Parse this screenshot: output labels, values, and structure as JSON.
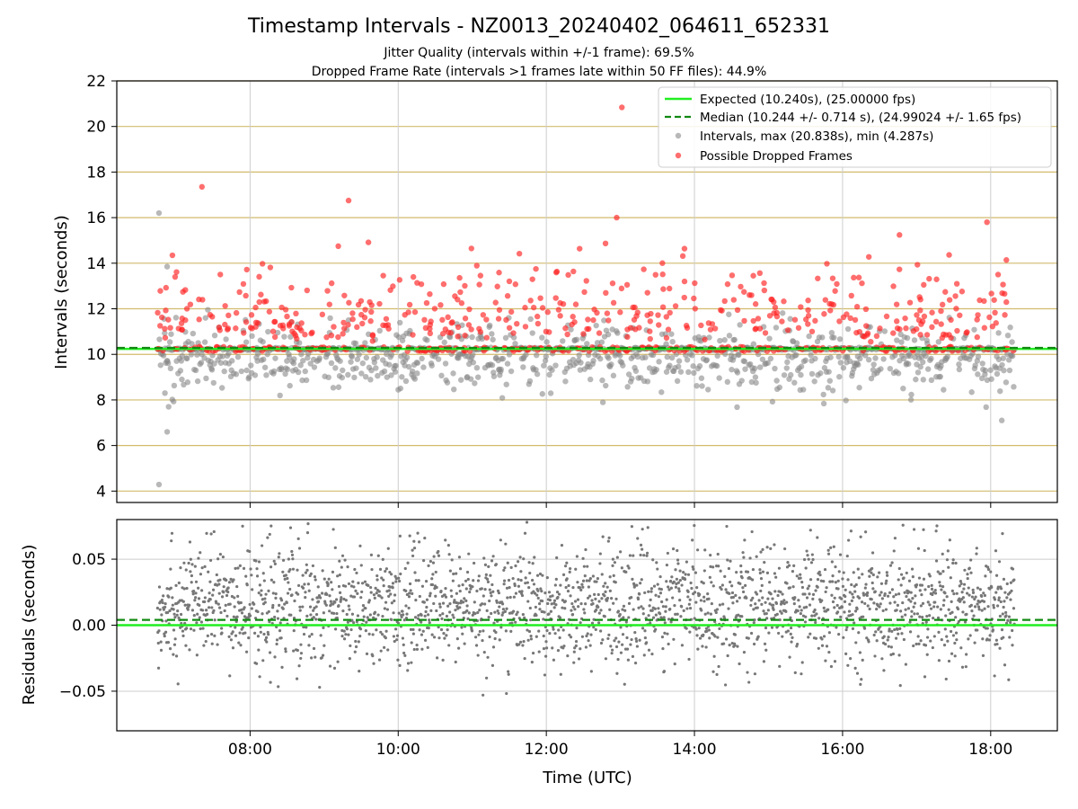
{
  "figure": {
    "title": "Timestamp Intervals - NZ0013_20240402_064611_652331",
    "subtitle_1": "Jitter Quality (intervals within +/-1 frame): 69.5%",
    "subtitle_2": "Dropped Frame Rate (intervals >1 frames late within 50 FF files): 44.9%"
  },
  "colors": {
    "expected_line": "#22ee22",
    "median_line": "#118811",
    "intervals_points": "#888888",
    "dropped_points": "#ff2020",
    "residual_points": "#777777",
    "h_grid": "#d2bb6f",
    "grid": "#cccccc"
  },
  "chart_data": [
    {
      "type": "scatter",
      "ylabel": "Intervals (seconds)",
      "xlim_hours": [
        6.2,
        18.9
      ],
      "ylim": [
        3.5,
        22
      ],
      "y_ticks": [
        4,
        6,
        8,
        10,
        12,
        14,
        16,
        18,
        20,
        22
      ],
      "grid": true,
      "legend_placement": "top-right",
      "legend": [
        "Expected (10.240s), (25.00000 fps)",
        "Median (10.244 +/- 0.714 s), (24.99024 +/- 1.65 fps)",
        "Intervals, max (20.838s), min (4.287s)",
        "Possible Dropped Frames"
      ],
      "expected_value": 10.24,
      "median_value": 10.244,
      "series": [
        {
          "name": "Intervals, max (20.838s), min (4.287s)",
          "x_start_hours": 6.75,
          "x_end_hours": 18.32,
          "max": 20.838,
          "min": 4.287
        },
        {
          "name": "Possible Dropped Frames"
        }
      ]
    },
    {
      "type": "scatter",
      "ylabel": "Residuals (seconds)",
      "xlabel": "Time (UTC)",
      "xlim_hours": [
        6.2,
        18.9
      ],
      "ylim": [
        -0.08,
        0.08
      ],
      "y_ticks": [
        0.05,
        0.0,
        -0.05
      ],
      "y_tick_labels": [
        "0.05",
        "0.00",
        "−0.05"
      ],
      "x_ticks_hours": [
        8,
        10,
        12,
        14,
        16,
        18
      ],
      "x_tick_labels": [
        "08:00",
        "10:00",
        "12:00",
        "14:00",
        "16:00",
        "18:00"
      ],
      "expected_value": 0.0,
      "median_value": 0.004,
      "grid": true
    }
  ]
}
